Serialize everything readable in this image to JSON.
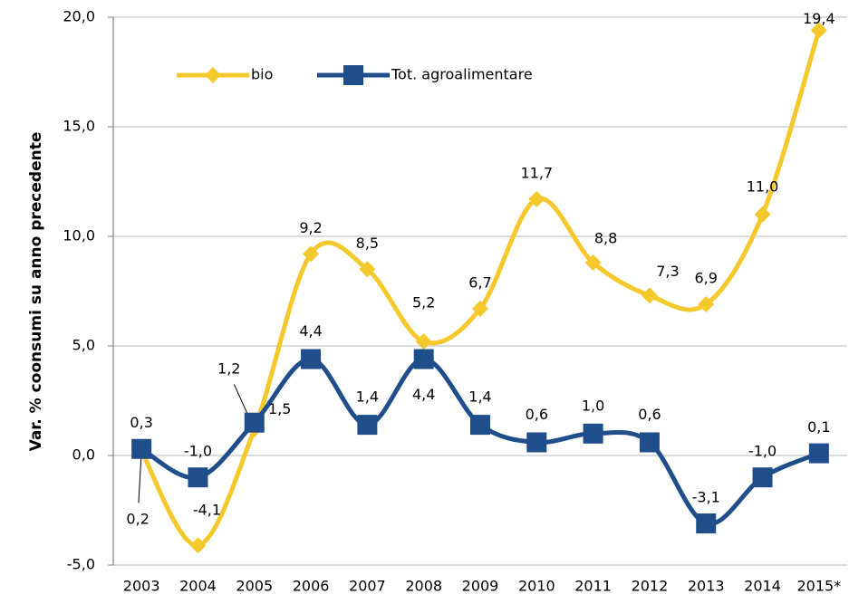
{
  "chart_data": {
    "type": "line",
    "y_label": "Var. % coonsumi su anno precedente",
    "categories": [
      "2003",
      "2004",
      "2005",
      "2006",
      "2007",
      "2008",
      "2009",
      "2010",
      "2011",
      "2012",
      "2013",
      "2014",
      "2015*"
    ],
    "series": [
      {
        "name": "bio",
        "color": "#f5c82c",
        "marker": "diamond",
        "values": [
          0.2,
          -4.1,
          1.2,
          9.2,
          8.5,
          5.2,
          6.7,
          11.7,
          8.8,
          7.3,
          6.9,
          11.0,
          19.4
        ],
        "value_labels": [
          "0,2",
          "-4,1",
          "1,2",
          "9,2",
          "8,5",
          "5,2",
          "6,7",
          "11,7",
          "8,8",
          "7,3",
          "6,9",
          "11,0",
          "19,4"
        ]
      },
      {
        "name": "Tot. agroalimentare",
        "color": "#1f4e8a",
        "marker": "square",
        "values": [
          0.3,
          -1.0,
          1.5,
          4.4,
          1.4,
          4.4,
          1.4,
          0.6,
          1.0,
          0.6,
          -3.1,
          -1.0,
          0.1
        ],
        "value_labels": [
          "0,3",
          "-1,0",
          "1,5",
          "4,4",
          "1,4",
          "4,4",
          "1,4",
          "0,6",
          "1,0",
          "0,6",
          "-3,1",
          "-1,0",
          "0,1"
        ]
      }
    ],
    "ylim": [
      -5,
      20
    ],
    "yticks": [
      {
        "value": -5,
        "label": "-5,0"
      },
      {
        "value": 0,
        "label": "0,0"
      },
      {
        "value": 5,
        "label": "5,0"
      },
      {
        "value": 10,
        "label": "10,0"
      },
      {
        "value": 15,
        "label": "15,0"
      },
      {
        "value": 20,
        "label": "20,0"
      }
    ],
    "grid": true,
    "smooth": true
  }
}
